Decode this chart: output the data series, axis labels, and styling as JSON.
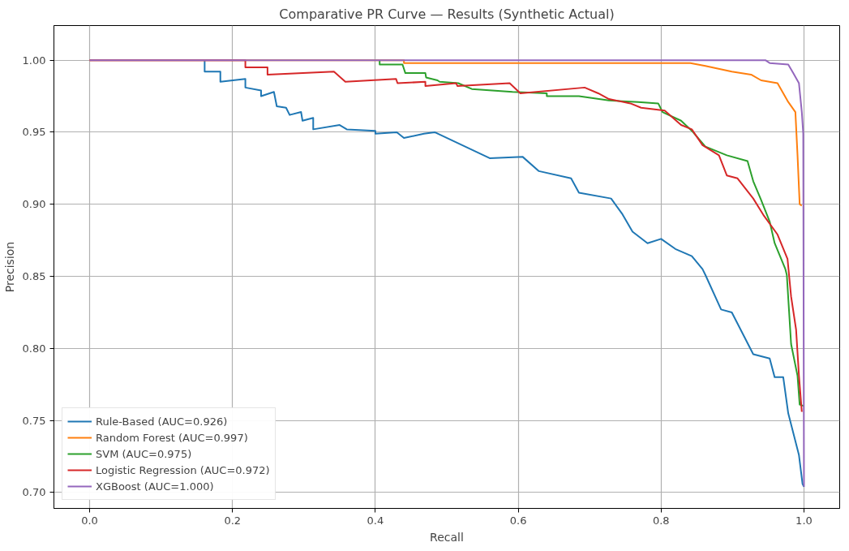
{
  "chart_data": {
    "type": "line",
    "title": "Comparative PR Curve — Results (Synthetic Actual)",
    "xlabel": "Recall",
    "ylabel": "Precision",
    "xlim": [
      -0.05,
      1.05
    ],
    "ylim": [
      0.689,
      1.024
    ],
    "xticks": [
      {
        "value": 0,
        "label": "0.0"
      },
      {
        "value": 0.2,
        "label": "0.2"
      },
      {
        "value": 0.4,
        "label": "0.4"
      },
      {
        "value": 0.6,
        "label": "0.6"
      },
      {
        "value": 0.8,
        "label": "0.8"
      },
      {
        "value": 1,
        "label": "1.0"
      }
    ],
    "yticks": [
      {
        "value": 0.7,
        "label": "0.70"
      },
      {
        "value": 0.75,
        "label": "0.75"
      },
      {
        "value": 0.8,
        "label": "0.80"
      },
      {
        "value": 0.85,
        "label": "0.85"
      },
      {
        "value": 0.9,
        "label": "0.90"
      },
      {
        "value": 0.95,
        "label": "0.95"
      },
      {
        "value": 1,
        "label": "1.00"
      }
    ],
    "grid": true,
    "legend": "bottom left",
    "line_style": "solid",
    "series": [
      {
        "name": "Rule-Based (AUC=0.926)",
        "color": "#1f77b4",
        "x": [
          0.161,
          0.161,
          0.183,
          0.183,
          0.218,
          0.218,
          0.24,
          0.24,
          0.258,
          0.262,
          0.275,
          0.28,
          0.296,
          0.298,
          0.313,
          0.313,
          0.35,
          0.36,
          0.4,
          0.4,
          0.43,
          0.44,
          0.468,
          0.483,
          0.56,
          0.606,
          0.629,
          0.674,
          0.685,
          0.73,
          0.746,
          0.76,
          0.781,
          0.8,
          0.82,
          0.843,
          0.858,
          0.862,
          0.884,
          0.899,
          0.929,
          0.952,
          0.959,
          0.971,
          0.978,
          0.993,
          0.998,
          1.0
        ],
        "values": [
          1.0,
          0.992,
          0.992,
          0.985,
          0.987,
          0.981,
          0.979,
          0.975,
          0.978,
          0.968,
          0.967,
          0.962,
          0.964,
          0.958,
          0.96,
          0.952,
          0.955,
          0.952,
          0.951,
          0.949,
          0.95,
          0.946,
          0.949,
          0.95,
          0.932,
          0.933,
          0.923,
          0.918,
          0.908,
          0.904,
          0.893,
          0.881,
          0.873,
          0.876,
          0.869,
          0.864,
          0.855,
          0.851,
          0.827,
          0.825,
          0.796,
          0.793,
          0.78,
          0.78,
          0.755,
          0.726,
          0.706,
          0.704
        ]
      },
      {
        "name": "Random Forest (AUC=0.997)",
        "color": "#ff7f0e",
        "x": [
          0,
          0.44,
          0.44,
          0.841,
          0.862,
          0.899,
          0.926,
          0.94,
          0.963,
          0.978,
          0.988,
          0.991,
          0.994,
          0.997
        ],
        "values": [
          1.0,
          1.0,
          0.998,
          0.998,
          0.996,
          0.992,
          0.99,
          0.986,
          0.984,
          0.971,
          0.964,
          0.934,
          0.9,
          0.899
        ]
      },
      {
        "name": "SVM (AUC=0.975)",
        "color": "#2ca02c",
        "x": [
          0.406,
          0.406,
          0.438,
          0.442,
          0.47,
          0.471,
          0.487,
          0.49,
          0.516,
          0.535,
          0.592,
          0.64,
          0.64,
          0.685,
          0.727,
          0.768,
          0.796,
          0.802,
          0.828,
          0.843,
          0.862,
          0.892,
          0.921,
          0.929,
          0.94,
          0.952,
          0.959,
          0.974,
          0.976,
          0.982,
          0.991,
          0.994,
          1.0
        ],
        "values": [
          1.0,
          0.997,
          0.997,
          0.991,
          0.991,
          0.988,
          0.986,
          0.985,
          0.984,
          0.98,
          0.978,
          0.977,
          0.975,
          0.975,
          0.972,
          0.971,
          0.97,
          0.964,
          0.958,
          0.951,
          0.94,
          0.934,
          0.93,
          0.916,
          0.903,
          0.888,
          0.873,
          0.855,
          0.851,
          0.803,
          0.781,
          0.761,
          0.76
        ]
      },
      {
        "name": "Logistic Regression (AUC=0.972)",
        "color": "#d62728",
        "x": [
          0,
          0.218,
          0.218,
          0.249,
          0.249,
          0.342,
          0.358,
          0.429,
          0.431,
          0.47,
          0.47,
          0.513,
          0.515,
          0.588,
          0.603,
          0.693,
          0.712,
          0.727,
          0.757,
          0.772,
          0.805,
          0.828,
          0.843,
          0.858,
          0.881,
          0.892,
          0.907,
          0.929,
          0.944,
          0.963,
          0.977,
          0.982,
          0.989,
          0.993,
          0.997
        ],
        "values": [
          1.0,
          1.0,
          0.995,
          0.995,
          0.99,
          0.992,
          0.985,
          0.987,
          0.984,
          0.985,
          0.982,
          0.984,
          0.982,
          0.984,
          0.977,
          0.981,
          0.977,
          0.973,
          0.97,
          0.967,
          0.965,
          0.955,
          0.952,
          0.941,
          0.934,
          0.92,
          0.918,
          0.904,
          0.892,
          0.879,
          0.862,
          0.836,
          0.813,
          0.781,
          0.756
        ]
      },
      {
        "name": "XGBoost (AUC=1.000)",
        "color": "#9467bd",
        "x": [
          0,
          0.946,
          0.952,
          0.978,
          0.985,
          0.993,
          0.997,
          0.999,
          1.0
        ],
        "values": [
          1.0,
          1.0,
          0.998,
          0.997,
          0.991,
          0.984,
          0.964,
          0.949,
          0.704
        ]
      }
    ]
  }
}
